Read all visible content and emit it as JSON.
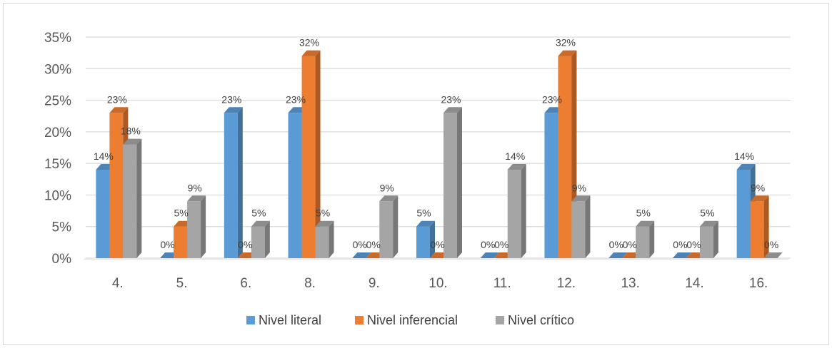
{
  "chart_data": {
    "type": "bar",
    "title": "",
    "xlabel": "",
    "ylabel": "",
    "categories": [
      "4.",
      "5.",
      "6.",
      "8.",
      "9.",
      "10.",
      "11.",
      "12.",
      "13.",
      "14.",
      "16."
    ],
    "ylim": [
      0,
      0.35
    ],
    "yticks": [
      0,
      0.05,
      0.1,
      0.15,
      0.2,
      0.25,
      0.3,
      0.35
    ],
    "ytick_labels": [
      "0%",
      "5%",
      "10%",
      "15%",
      "20%",
      "25%",
      "30%",
      "35%"
    ],
    "grid": true,
    "legend_position": "bottom",
    "series": [
      {
        "name": "Nivel literal",
        "color": "#5b9bd5",
        "values": [
          0.14,
          0,
          0.23,
          0.23,
          0,
          0.05,
          0,
          0.23,
          0,
          0,
          0.14
        ],
        "labels": [
          "14%",
          "0%",
          "23%",
          "23%",
          "0%",
          "5%",
          "0%",
          "23%",
          "0%",
          "0%",
          "14%"
        ]
      },
      {
        "name": "Nivel inferencial",
        "color": "#ed7d31",
        "values": [
          0.23,
          0.05,
          0,
          0.32,
          0,
          0,
          0,
          0.32,
          0,
          0,
          0.09
        ],
        "labels": [
          "23%",
          "5%",
          "0%",
          "32%",
          "0%",
          "0%",
          "0%",
          "32%",
          "0%",
          "0%",
          "9%"
        ]
      },
      {
        "name": "Nivel crítico",
        "color": "#a5a5a5",
        "values": [
          0.18,
          0.09,
          0.05,
          0.05,
          0.09,
          0.23,
          0.14,
          0.09,
          0.05,
          0.05,
          0
        ],
        "labels": [
          "18%",
          "9%",
          "5%",
          "5%",
          "9%",
          "23%",
          "14%",
          "9%",
          "5%",
          "5%",
          "0%"
        ]
      }
    ]
  }
}
